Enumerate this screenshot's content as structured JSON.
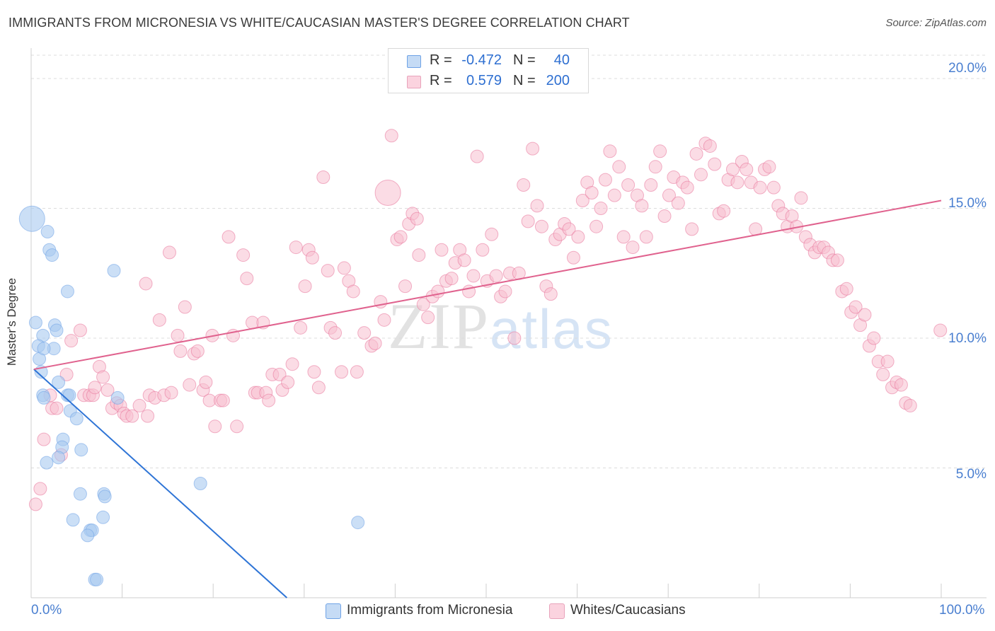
{
  "title": "IMMIGRANTS FROM MICRONESIA VS WHITE/CAUCASIAN MASTER'S DEGREE CORRELATION CHART",
  "source": "Source: ZipAtlas.com",
  "watermark": {
    "zip": "ZIP",
    "atlas": "atlas"
  },
  "legend": {
    "rows": [
      {
        "r_label": "R =",
        "r_value": "-0.472",
        "n_label": "N =",
        "n_value": "40",
        "color": "#a9c9f0"
      },
      {
        "r_label": "R =",
        "r_value": "0.579",
        "n_label": "N =",
        "n_value": "200",
        "color": "#f7bfd0"
      }
    ]
  },
  "bottom_legend": {
    "micronesia": "Immigrants from Micronesia",
    "white": "Whites/Caucasians"
  },
  "axes": {
    "ylabel": "Master's Degree",
    "y_ticks": [
      "20.0%",
      "15.0%",
      "10.0%",
      "5.0%"
    ],
    "x_min_label": "0.0%",
    "x_max_label": "100.0%"
  },
  "chart_data": {
    "type": "scatter",
    "title": "IMMIGRANTS FROM MICRONESIA VS WHITE/CAUCASIAN MASTER'S DEGREE CORRELATION CHART",
    "xlabel": "",
    "ylabel": "Master's Degree",
    "xlim": [
      0,
      100
    ],
    "ylim": [
      0,
      20.9
    ],
    "grid": true,
    "y_grid_values": [
      5,
      10,
      15,
      20
    ],
    "series": [
      {
        "name": "Immigrants from Micronesia",
        "color": "#6fa3e6",
        "fill": "#a9c9f0",
        "trend": {
          "x": [
            0.3,
            28.1
          ],
          "y": [
            8.8,
            0
          ]
        },
        "points": [
          [
            0.1,
            14.6,
            1
          ],
          [
            1.8,
            14.1,
            0
          ],
          [
            2.0,
            13.4,
            0
          ],
          [
            2.3,
            13.2,
            0
          ],
          [
            9.1,
            12.6,
            0
          ],
          [
            4.0,
            11.8,
            0
          ],
          [
            0.5,
            10.6,
            0
          ],
          [
            2.6,
            10.5,
            0
          ],
          [
            1.3,
            10.1,
            0
          ],
          [
            2.8,
            10.3,
            0
          ],
          [
            0.8,
            9.7,
            0
          ],
          [
            2.5,
            9.6,
            0
          ],
          [
            0.9,
            9.2,
            0
          ],
          [
            1.1,
            8.7,
            0
          ],
          [
            3.0,
            8.3,
            0
          ],
          [
            1.3,
            7.8,
            0
          ],
          [
            1.4,
            7.7,
            0
          ],
          [
            4.0,
            7.8,
            0
          ],
          [
            4.2,
            7.8,
            0
          ],
          [
            9.5,
            7.7,
            0
          ],
          [
            4.3,
            7.2,
            0
          ],
          [
            5.0,
            6.9,
            0
          ],
          [
            3.5,
            6.1,
            0
          ],
          [
            3.4,
            5.8,
            0
          ],
          [
            5.5,
            5.7,
            0
          ],
          [
            3.0,
            5.4,
            0
          ],
          [
            1.7,
            5.2,
            0
          ],
          [
            18.6,
            4.4,
            0
          ],
          [
            5.4,
            4.0,
            0
          ],
          [
            8.0,
            4.0,
            0
          ],
          [
            8.1,
            3.9,
            0
          ],
          [
            4.6,
            3.0,
            0
          ],
          [
            7.9,
            3.1,
            0
          ],
          [
            35.9,
            2.9,
            0
          ],
          [
            6.5,
            2.6,
            0
          ],
          [
            6.7,
            2.6,
            0
          ],
          [
            6.2,
            2.4,
            0
          ],
          [
            7.0,
            0.7,
            0
          ],
          [
            7.2,
            0.7,
            0
          ],
          [
            1.4,
            9.6,
            0
          ]
        ]
      },
      {
        "name": "Whites/Caucasians",
        "color": "#e8749a",
        "fill": "#f7bfd0",
        "trend": {
          "x": [
            0.3,
            100
          ],
          "y": [
            8.8,
            15.3
          ]
        },
        "points": [
          [
            0.5,
            3.6,
            0
          ],
          [
            1.0,
            4.2,
            0
          ],
          [
            1.4,
            6.1,
            0
          ],
          [
            2.1,
            7.8,
            0
          ],
          [
            2.3,
            7.3,
            0
          ],
          [
            2.8,
            7.3,
            0
          ],
          [
            3.3,
            5.5,
            0
          ],
          [
            3.9,
            8.6,
            0
          ],
          [
            4.4,
            9.9,
            0
          ],
          [
            5.4,
            10.3,
            0
          ],
          [
            5.8,
            7.8,
            0
          ],
          [
            6.4,
            7.8,
            0
          ],
          [
            6.8,
            7.8,
            0
          ],
          [
            7.0,
            8.1,
            0
          ],
          [
            7.5,
            8.9,
            0
          ],
          [
            7.9,
            8.5,
            0
          ],
          [
            8.4,
            8.0,
            0
          ],
          [
            8.9,
            7.3,
            0
          ],
          [
            9.4,
            7.5,
            0
          ],
          [
            9.8,
            7.4,
            0
          ],
          [
            10.2,
            7.1,
            0
          ],
          [
            10.5,
            7.0,
            0
          ],
          [
            11.1,
            7.0,
            0
          ],
          [
            11.9,
            7.4,
            0
          ],
          [
            12.6,
            12.1,
            0
          ],
          [
            12.8,
            7.0,
            0
          ],
          [
            13.0,
            7.8,
            0
          ],
          [
            13.6,
            7.7,
            0
          ],
          [
            14.1,
            10.7,
            0
          ],
          [
            14.6,
            7.8,
            0
          ],
          [
            15.2,
            13.3,
            0
          ],
          [
            15.4,
            7.9,
            0
          ],
          [
            16.1,
            10.1,
            0
          ],
          [
            16.4,
            9.5,
            0
          ],
          [
            16.9,
            11.2,
            0
          ],
          [
            17.4,
            8.2,
            0
          ],
          [
            17.9,
            9.4,
            0
          ],
          [
            18.3,
            9.5,
            0
          ],
          [
            18.9,
            8.0,
            0
          ],
          [
            19.2,
            8.3,
            0
          ],
          [
            19.6,
            7.6,
            0
          ],
          [
            19.9,
            10.1,
            0
          ],
          [
            20.2,
            6.6,
            0
          ],
          [
            20.8,
            7.6,
            0
          ],
          [
            21.1,
            7.6,
            0
          ],
          [
            21.7,
            13.9,
            0
          ],
          [
            22.2,
            10.1,
            0
          ],
          [
            22.6,
            6.6,
            0
          ],
          [
            23.3,
            13.2,
            0
          ],
          [
            23.7,
            12.3,
            0
          ],
          [
            24.3,
            10.6,
            0
          ],
          [
            24.6,
            7.9,
            0
          ],
          [
            24.9,
            7.9,
            0
          ],
          [
            25.5,
            10.6,
            0
          ],
          [
            25.8,
            7.9,
            0
          ],
          [
            26.1,
            7.6,
            0
          ],
          [
            26.5,
            8.6,
            0
          ],
          [
            27.3,
            8.6,
            0
          ],
          [
            27.6,
            8.0,
            0
          ],
          [
            28.2,
            8.3,
            0
          ],
          [
            28.7,
            9.0,
            0
          ],
          [
            29.1,
            13.5,
            0
          ],
          [
            29.6,
            10.4,
            0
          ],
          [
            30.1,
            12.0,
            0
          ],
          [
            30.5,
            13.4,
            0
          ],
          [
            30.9,
            13.1,
            0
          ],
          [
            31.1,
            8.7,
            0
          ],
          [
            31.6,
            8.1,
            0
          ],
          [
            32.1,
            16.2,
            0
          ],
          [
            32.6,
            12.6,
            0
          ],
          [
            32.9,
            10.4,
            0
          ],
          [
            33.4,
            10.2,
            0
          ],
          [
            34.1,
            8.7,
            0
          ],
          [
            34.4,
            12.7,
            0
          ],
          [
            34.9,
            12.2,
            0
          ],
          [
            35.4,
            11.8,
            0
          ],
          [
            35.8,
            8.7,
            0
          ],
          [
            36.6,
            10.2,
            0
          ],
          [
            37.4,
            9.7,
            0
          ],
          [
            37.8,
            9.8,
            0
          ],
          [
            38.4,
            11.4,
            0
          ],
          [
            38.8,
            10.7,
            0
          ],
          [
            39.2,
            15.6,
            1
          ],
          [
            39.6,
            17.8,
            0
          ],
          [
            40.2,
            13.8,
            0
          ],
          [
            40.6,
            13.9,
            0
          ],
          [
            41.1,
            12.0,
            0
          ],
          [
            41.5,
            14.4,
            0
          ],
          [
            41.9,
            14.8,
            0
          ],
          [
            42.4,
            14.6,
            0
          ],
          [
            42.6,
            13.2,
            0
          ],
          [
            43.1,
            11.3,
            0
          ],
          [
            43.6,
            10.8,
            0
          ],
          [
            44.1,
            11.6,
            0
          ],
          [
            44.7,
            11.8,
            0
          ],
          [
            45.1,
            13.4,
            0
          ],
          [
            45.6,
            12.2,
            0
          ],
          [
            46.2,
            12.3,
            0
          ],
          [
            46.6,
            12.9,
            0
          ],
          [
            47.1,
            13.4,
            0
          ],
          [
            47.6,
            13.0,
            0
          ],
          [
            48.1,
            11.8,
            0
          ],
          [
            48.6,
            12.4,
            0
          ],
          [
            49.0,
            17.0,
            0
          ],
          [
            49.6,
            13.4,
            0
          ],
          [
            50.1,
            12.2,
            0
          ],
          [
            50.6,
            14.0,
            0
          ],
          [
            51.1,
            12.4,
            0
          ],
          [
            51.6,
            11.6,
            0
          ],
          [
            52.1,
            11.8,
            0
          ],
          [
            52.6,
            12.5,
            0
          ],
          [
            53.1,
            10.0,
            0
          ],
          [
            53.6,
            12.5,
            0
          ],
          [
            54.1,
            15.9,
            0
          ],
          [
            54.6,
            14.5,
            0
          ],
          [
            55.1,
            17.3,
            0
          ],
          [
            55.6,
            15.1,
            0
          ],
          [
            56.1,
            14.3,
            0
          ],
          [
            56.6,
            12.0,
            0
          ],
          [
            57.1,
            11.7,
            0
          ],
          [
            57.6,
            13.8,
            0
          ],
          [
            58.1,
            14.0,
            0
          ],
          [
            58.6,
            14.4,
            0
          ],
          [
            59.1,
            14.2,
            0
          ],
          [
            59.6,
            13.1,
            0
          ],
          [
            60.1,
            13.9,
            0
          ],
          [
            60.6,
            15.3,
            0
          ],
          [
            61.1,
            16.0,
            0
          ],
          [
            61.6,
            15.6,
            0
          ],
          [
            62.1,
            14.3,
            0
          ],
          [
            62.6,
            15.0,
            0
          ],
          [
            63.1,
            16.1,
            0
          ],
          [
            63.6,
            17.2,
            0
          ],
          [
            64.1,
            15.5,
            0
          ],
          [
            64.6,
            16.6,
            0
          ],
          [
            65.1,
            13.9,
            0
          ],
          [
            65.6,
            15.9,
            0
          ],
          [
            66.1,
            13.5,
            0
          ],
          [
            66.6,
            15.5,
            0
          ],
          [
            67.1,
            15.1,
            0
          ],
          [
            67.6,
            13.9,
            0
          ],
          [
            68.1,
            15.9,
            0
          ],
          [
            68.6,
            16.6,
            0
          ],
          [
            69.1,
            17.2,
            0
          ],
          [
            69.6,
            14.7,
            0
          ],
          [
            70.1,
            15.5,
            0
          ],
          [
            70.6,
            16.2,
            0
          ],
          [
            71.1,
            15.2,
            0
          ],
          [
            71.6,
            16.0,
            0
          ],
          [
            72.1,
            15.8,
            0
          ],
          [
            72.6,
            14.2,
            0
          ],
          [
            73.1,
            17.1,
            0
          ],
          [
            73.6,
            16.3,
            0
          ],
          [
            74.1,
            17.5,
            0
          ],
          [
            74.6,
            17.4,
            0
          ],
          [
            75.1,
            16.7,
            0
          ],
          [
            75.6,
            14.8,
            0
          ],
          [
            76.1,
            14.9,
            0
          ],
          [
            76.6,
            16.1,
            0
          ],
          [
            77.1,
            16.5,
            0
          ],
          [
            77.6,
            16.0,
            0
          ],
          [
            78.1,
            16.8,
            0
          ],
          [
            78.6,
            16.5,
            0
          ],
          [
            79.1,
            16.0,
            0
          ],
          [
            79.6,
            14.2,
            0
          ],
          [
            80.1,
            15.8,
            0
          ],
          [
            80.6,
            16.5,
            0
          ],
          [
            81.1,
            16.6,
            0
          ],
          [
            81.6,
            15.8,
            0
          ],
          [
            82.1,
            15.1,
            0
          ],
          [
            82.6,
            14.8,
            0
          ],
          [
            83.1,
            14.3,
            0
          ],
          [
            83.6,
            14.7,
            0
          ],
          [
            84.1,
            14.3,
            0
          ],
          [
            84.6,
            15.4,
            0
          ],
          [
            85.1,
            13.9,
            0
          ],
          [
            85.6,
            13.6,
            0
          ],
          [
            86.1,
            13.3,
            0
          ],
          [
            86.6,
            13.5,
            0
          ],
          [
            87.1,
            13.5,
            0
          ],
          [
            87.6,
            13.3,
            0
          ],
          [
            88.1,
            13.0,
            0
          ],
          [
            88.6,
            13.0,
            0
          ],
          [
            89.1,
            11.8,
            0
          ],
          [
            89.6,
            11.9,
            0
          ],
          [
            90.1,
            11.0,
            0
          ],
          [
            90.6,
            11.2,
            0
          ],
          [
            91.1,
            10.5,
            0
          ],
          [
            91.6,
            10.9,
            0
          ],
          [
            92.1,
            9.7,
            0
          ],
          [
            92.6,
            10.0,
            0
          ],
          [
            93.1,
            9.1,
            0
          ],
          [
            93.6,
            8.6,
            0
          ],
          [
            94.1,
            9.1,
            0
          ],
          [
            94.6,
            8.1,
            0
          ],
          [
            95.1,
            8.3,
            0
          ],
          [
            95.6,
            8.2,
            0
          ],
          [
            96.1,
            7.5,
            0
          ],
          [
            96.6,
            7.4,
            0
          ],
          [
            99.9,
            10.3,
            0
          ]
        ]
      }
    ]
  }
}
